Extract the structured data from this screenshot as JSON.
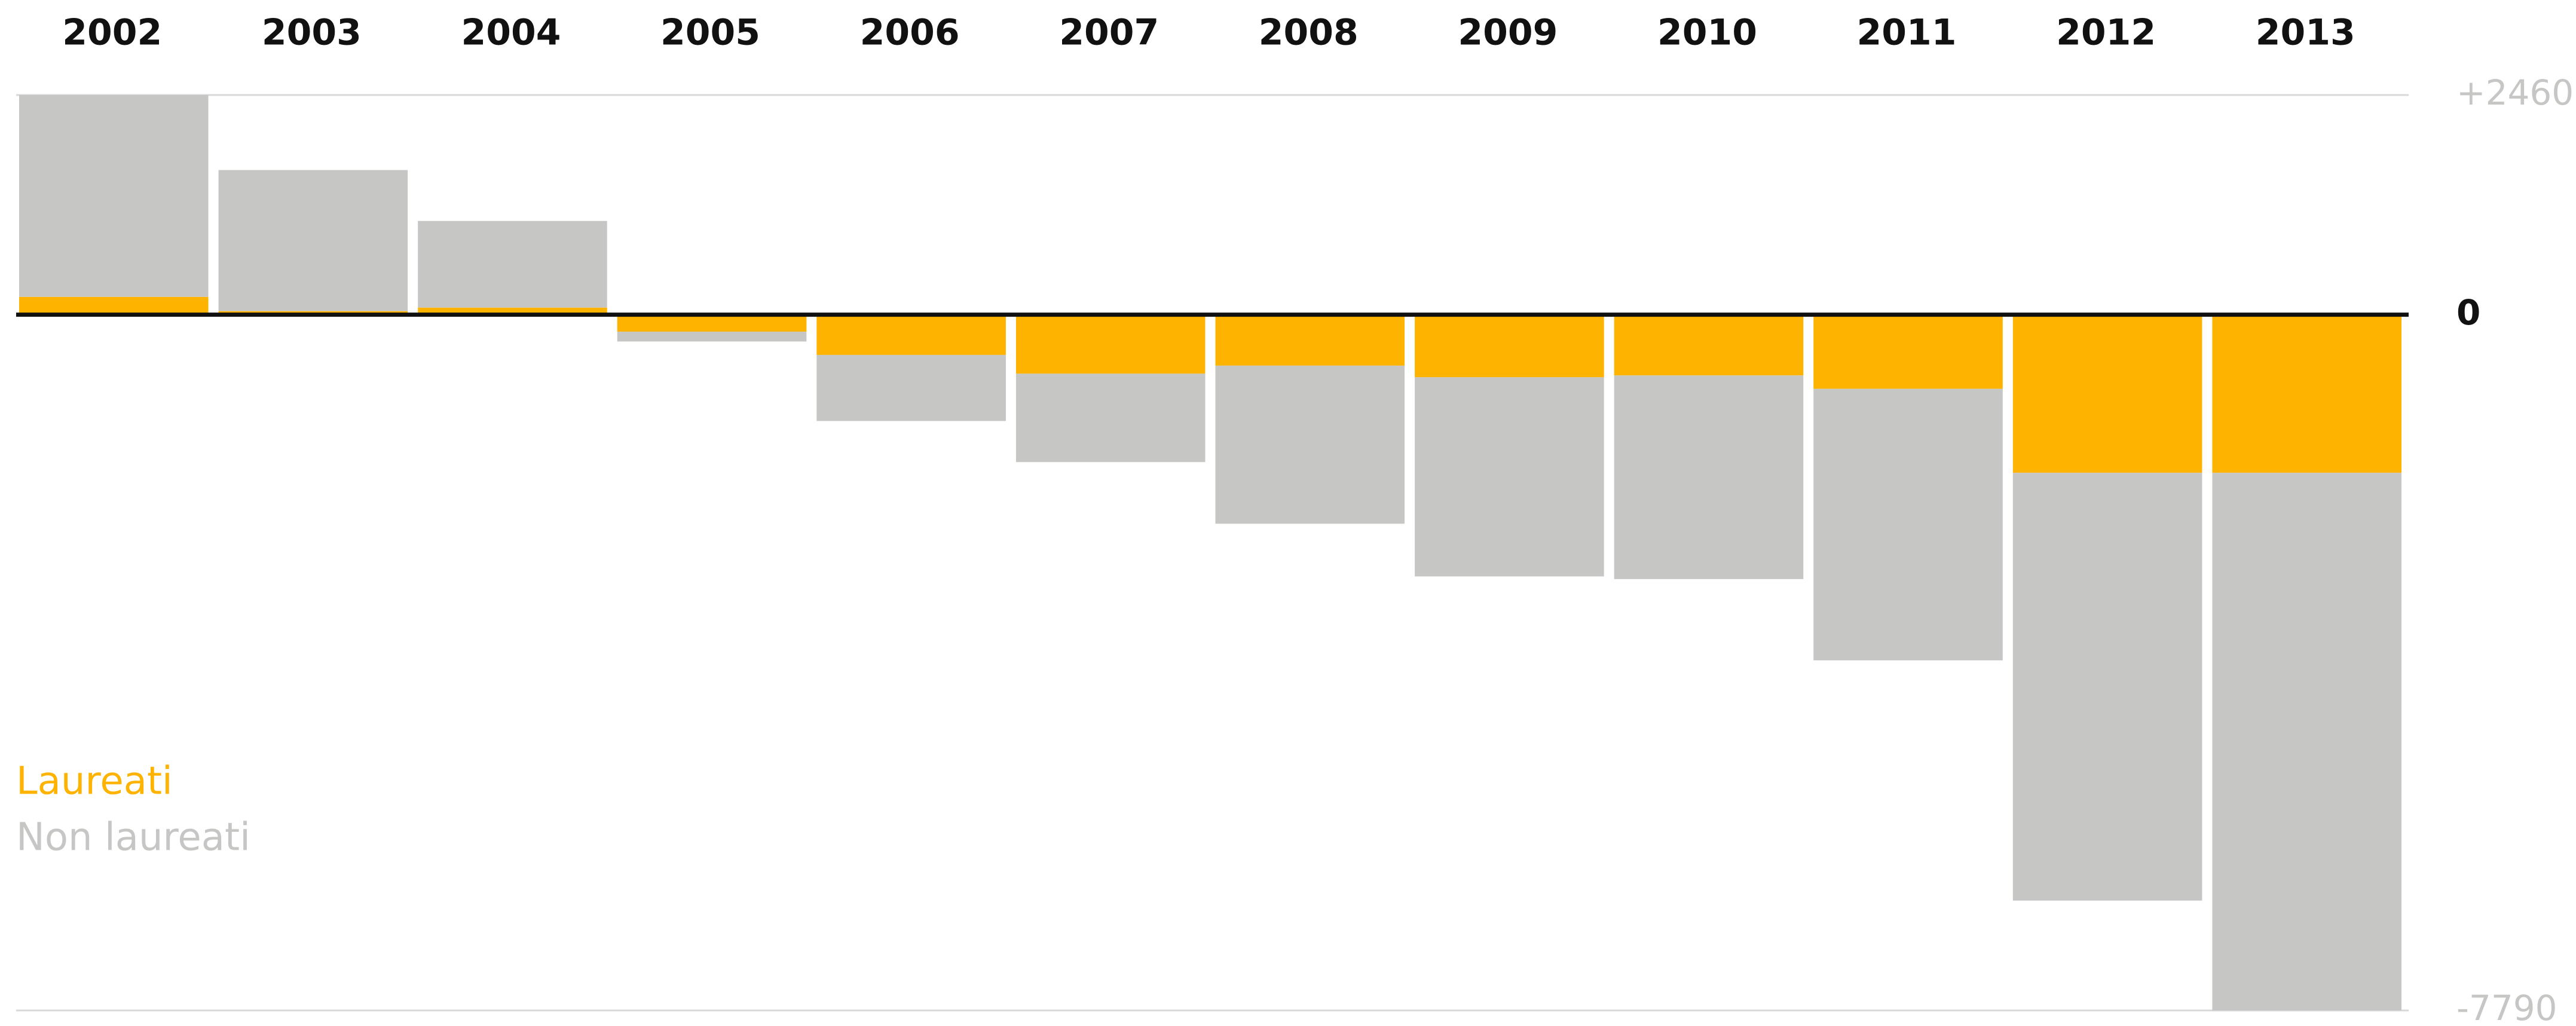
{
  "chart_data": {
    "type": "bar",
    "stacked": true,
    "categories": [
      "2002",
      "2003",
      "2004",
      "2005",
      "2006",
      "2007",
      "2008",
      "2009",
      "2010",
      "2011",
      "2012",
      "2013"
    ],
    "series": [
      {
        "name": "Laureati",
        "color": "#fdb300",
        "values": [
          200,
          40,
          80,
          -190,
          -450,
          -660,
          -570,
          -700,
          -680,
          -830,
          -1770,
          -1770
        ]
      },
      {
        "name": "Non laureati",
        "color": "#c6c6c5",
        "values": [
          2260,
          1580,
          970,
          -110,
          -740,
          -990,
          -1770,
          -2230,
          -2280,
          -3040,
          -4790,
          -6020
        ]
      }
    ],
    "ylim": [
      -7790,
      2460
    ],
    "yticks": [
      {
        "value": 2460,
        "label": "+2460"
      },
      0,
      {
        "value": -7790,
        "label": "-7790"
      }
    ],
    "grid": true
  }
}
